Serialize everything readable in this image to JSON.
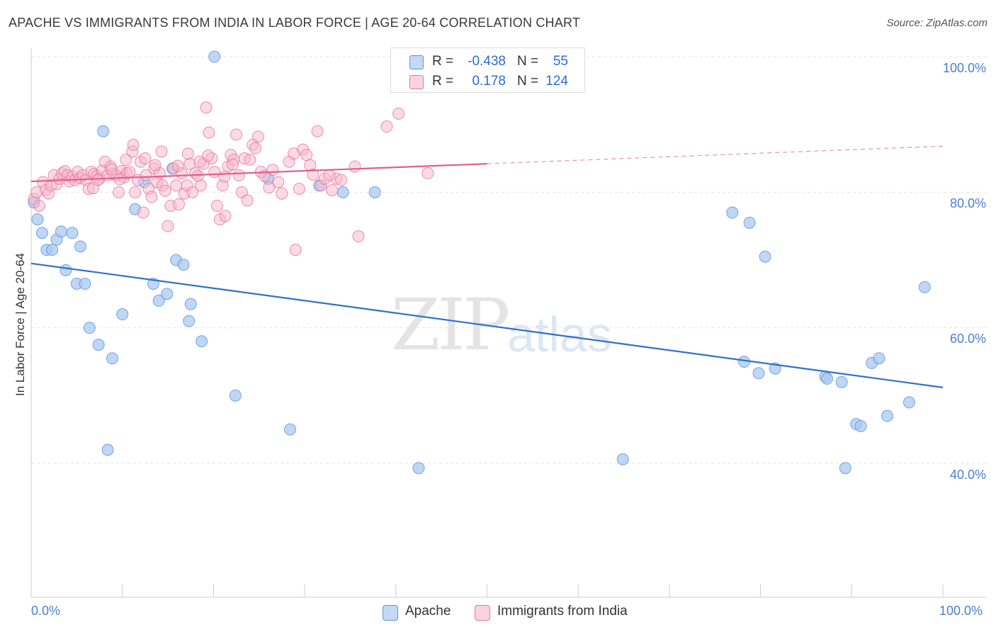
{
  "title": "APACHE VS IMMIGRANTS FROM INDIA IN LABOR FORCE | AGE 20-64 CORRELATION CHART",
  "source": "Source: ZipAtlas.com",
  "watermark": {
    "zip": "ZIP",
    "atlas": "atlas"
  },
  "legend_top": [
    {
      "r_label": "R =",
      "r_value": "-0.438",
      "n_label": "N =",
      "n_value": "55",
      "color": "#a9c8f0"
    },
    {
      "r_label": "R =",
      "r_value": "0.178",
      "n_label": "N =",
      "n_value": "124",
      "color": "#f6b8cc"
    }
  ],
  "legend_bottom": [
    {
      "label": "Apache",
      "color": "#a9c8f0"
    },
    {
      "label": "Immigrants from India",
      "color": "#f6b8cc"
    }
  ],
  "chart_data": {
    "type": "scatter",
    "title": "APACHE VS IMMIGRANTS FROM INDIA IN LABOR FORCE | AGE 20-64 CORRELATION CHART",
    "xlabel": "",
    "ylabel": "In Labor Force | Age 20-64",
    "xlim": [
      0,
      100
    ],
    "ylim": [
      20,
      102
    ],
    "x_tick_labels": [
      "0.0%",
      "100.0%"
    ],
    "y_tick_labels": [
      "40.0%",
      "60.0%",
      "80.0%",
      "100.0%"
    ],
    "y_ticks": [
      40,
      60,
      80,
      100
    ],
    "series": [
      {
        "name": "Apache",
        "color": "#5b92de",
        "fill": "#a9c8f0",
        "trend": {
          "x0": 0,
          "y0": 69.5,
          "x1": 100,
          "y1": 51.2
        },
        "points": [
          [
            0.3,
            78.5
          ],
          [
            0.7,
            76
          ],
          [
            1.2,
            74
          ],
          [
            1.7,
            71.5
          ],
          [
            2.3,
            71.5
          ],
          [
            2.8,
            73
          ],
          [
            3.3,
            74.2
          ],
          [
            3.8,
            68.5
          ],
          [
            4.5,
            74
          ],
          [
            5,
            66.5
          ],
          [
            5.4,
            72
          ],
          [
            5.9,
            66.5
          ],
          [
            6.4,
            60
          ],
          [
            7.4,
            57.5
          ],
          [
            7.9,
            89
          ],
          [
            8.4,
            42
          ],
          [
            8.9,
            55.5
          ],
          [
            10,
            62
          ],
          [
            11.4,
            77.5
          ],
          [
            12.4,
            81.5
          ],
          [
            13.4,
            66.5
          ],
          [
            14,
            64
          ],
          [
            14.9,
            65
          ],
          [
            15.5,
            83.5
          ],
          [
            15.9,
            70
          ],
          [
            16.7,
            69.3
          ],
          [
            17.3,
            61
          ],
          [
            17.5,
            63.5
          ],
          [
            18.7,
            58
          ],
          [
            20.1,
            100
          ],
          [
            22.4,
            50
          ],
          [
            26,
            82
          ],
          [
            28.4,
            45
          ],
          [
            31.6,
            81
          ],
          [
            34.2,
            80
          ],
          [
            37.7,
            80
          ],
          [
            42.5,
            39.3
          ],
          [
            64.9,
            40.6
          ],
          [
            76.9,
            77
          ],
          [
            78.2,
            55
          ],
          [
            78.8,
            75.5
          ],
          [
            79.8,
            53.3
          ],
          [
            80.5,
            70.5
          ],
          [
            81.6,
            54
          ],
          [
            87.1,
            52.8
          ],
          [
            87.3,
            52.5
          ],
          [
            88.9,
            52
          ],
          [
            89.3,
            39.3
          ],
          [
            90.5,
            45.8
          ],
          [
            91,
            45.5
          ],
          [
            92.2,
            54.8
          ],
          [
            93,
            55.5
          ],
          [
            93.9,
            47
          ],
          [
            96.3,
            49
          ],
          [
            98,
            66
          ]
        ]
      },
      {
        "name": "Immigrants from India",
        "color": "#e9739a",
        "fill": "#f6b8cc",
        "trend": {
          "x0": 0,
          "y0": 81.6,
          "x1": 50,
          "y1": 84.2,
          "x_dash_end": 100,
          "y_dash_end": 86.8
        },
        "points": [
          [
            0.3,
            79
          ],
          [
            0.6,
            80
          ],
          [
            0.9,
            78
          ],
          [
            1.3,
            81.5
          ],
          [
            1.6,
            80.3
          ],
          [
            1.9,
            79.8
          ],
          [
            2.2,
            81
          ],
          [
            2.5,
            82.5
          ],
          [
            2.8,
            81.2
          ],
          [
            3.1,
            82
          ],
          [
            3.4,
            82.8
          ],
          [
            3.7,
            83.1
          ],
          [
            4,
            82.5
          ],
          [
            4.2,
            81.6
          ],
          [
            4.5,
            82.3
          ],
          [
            4.8,
            81.8
          ],
          [
            5.1,
            83
          ],
          [
            5.4,
            82.1
          ],
          [
            5.7,
            82.5
          ],
          [
            6,
            81.8
          ],
          [
            6.3,
            80.5
          ],
          [
            6.6,
            83
          ],
          [
            6.9,
            82.7
          ],
          [
            7.2,
            82.4
          ],
          [
            7.5,
            82
          ],
          [
            7.8,
            83.2
          ],
          [
            8.1,
            84.5
          ],
          [
            8.4,
            82.5
          ],
          [
            8.7,
            83.8
          ],
          [
            9,
            82.7
          ],
          [
            9.3,
            82.5
          ],
          [
            9.6,
            80
          ],
          [
            9.9,
            83.1
          ],
          [
            10.2,
            82.2
          ],
          [
            10.5,
            82.8
          ],
          [
            10.8,
            83
          ],
          [
            11.1,
            86
          ],
          [
            11.4,
            80
          ],
          [
            11.7,
            81.8
          ],
          [
            12,
            84.5
          ],
          [
            12.3,
            77
          ],
          [
            12.6,
            82.5
          ],
          [
            12.9,
            80.5
          ],
          [
            13.2,
            79.3
          ],
          [
            13.5,
            83.5
          ],
          [
            13.8,
            81.5
          ],
          [
            14.1,
            82.8
          ],
          [
            14.4,
            81
          ],
          [
            14.7,
            80.2
          ],
          [
            15,
            75
          ],
          [
            15.3,
            78
          ],
          [
            15.6,
            83.5
          ],
          [
            15.9,
            81
          ],
          [
            16.2,
            78.2
          ],
          [
            16.5,
            82.8
          ],
          [
            16.8,
            79.8
          ],
          [
            17.1,
            81
          ],
          [
            17.4,
            84.2
          ],
          [
            17.7,
            80
          ],
          [
            18,
            82.8
          ],
          [
            18.3,
            82.4
          ],
          [
            18.6,
            81
          ],
          [
            18.9,
            84.2
          ],
          [
            19.2,
            92.5
          ],
          [
            19.5,
            88.8
          ],
          [
            19.8,
            85
          ],
          [
            20.1,
            83
          ],
          [
            20.4,
            78
          ],
          [
            20.7,
            76
          ],
          [
            21,
            81
          ],
          [
            21.3,
            76.5
          ],
          [
            21.6,
            83.8
          ],
          [
            21.9,
            85.5
          ],
          [
            22.2,
            84.8
          ],
          [
            22.5,
            88.5
          ],
          [
            22.8,
            82.5
          ],
          [
            23.1,
            80
          ],
          [
            23.4,
            85
          ],
          [
            23.7,
            78.8
          ],
          [
            24,
            84.8
          ],
          [
            24.3,
            87
          ],
          [
            24.6,
            86.5
          ],
          [
            24.9,
            88.2
          ],
          [
            25.2,
            83
          ],
          [
            26.5,
            83.3
          ],
          [
            27.5,
            79.8
          ],
          [
            28.3,
            84.5
          ],
          [
            29,
            71.5
          ],
          [
            29.4,
            80.5
          ],
          [
            29.8,
            86.3
          ],
          [
            30.2,
            85.5
          ],
          [
            30.6,
            84
          ],
          [
            31.4,
            89
          ],
          [
            31.8,
            81
          ],
          [
            32.2,
            82
          ],
          [
            33,
            80.3
          ],
          [
            33.5,
            82
          ],
          [
            34,
            81.8
          ],
          [
            35.5,
            83.8
          ],
          [
            35.9,
            73.5
          ],
          [
            39,
            89.7
          ],
          [
            40.3,
            91.6
          ],
          [
            43.5,
            82.8
          ],
          [
            11.2,
            87
          ],
          [
            12.5,
            85
          ],
          [
            13.6,
            84
          ],
          [
            14.3,
            86
          ],
          [
            6.8,
            80.6
          ],
          [
            7.3,
            81.8
          ],
          [
            8.8,
            83.4
          ],
          [
            9.7,
            81.9
          ],
          [
            10.4,
            84.8
          ],
          [
            16.1,
            83.9
          ],
          [
            17.2,
            85.7
          ],
          [
            18.5,
            84.5
          ],
          [
            19.4,
            85.4
          ],
          [
            21.2,
            82.3
          ],
          [
            22.1,
            84.1
          ],
          [
            25.6,
            82.4
          ],
          [
            26.1,
            80.7
          ],
          [
            27.1,
            81.5
          ],
          [
            28.8,
            85.7
          ],
          [
            30.9,
            82.6
          ],
          [
            32.7,
            82.5
          ]
        ]
      }
    ]
  }
}
